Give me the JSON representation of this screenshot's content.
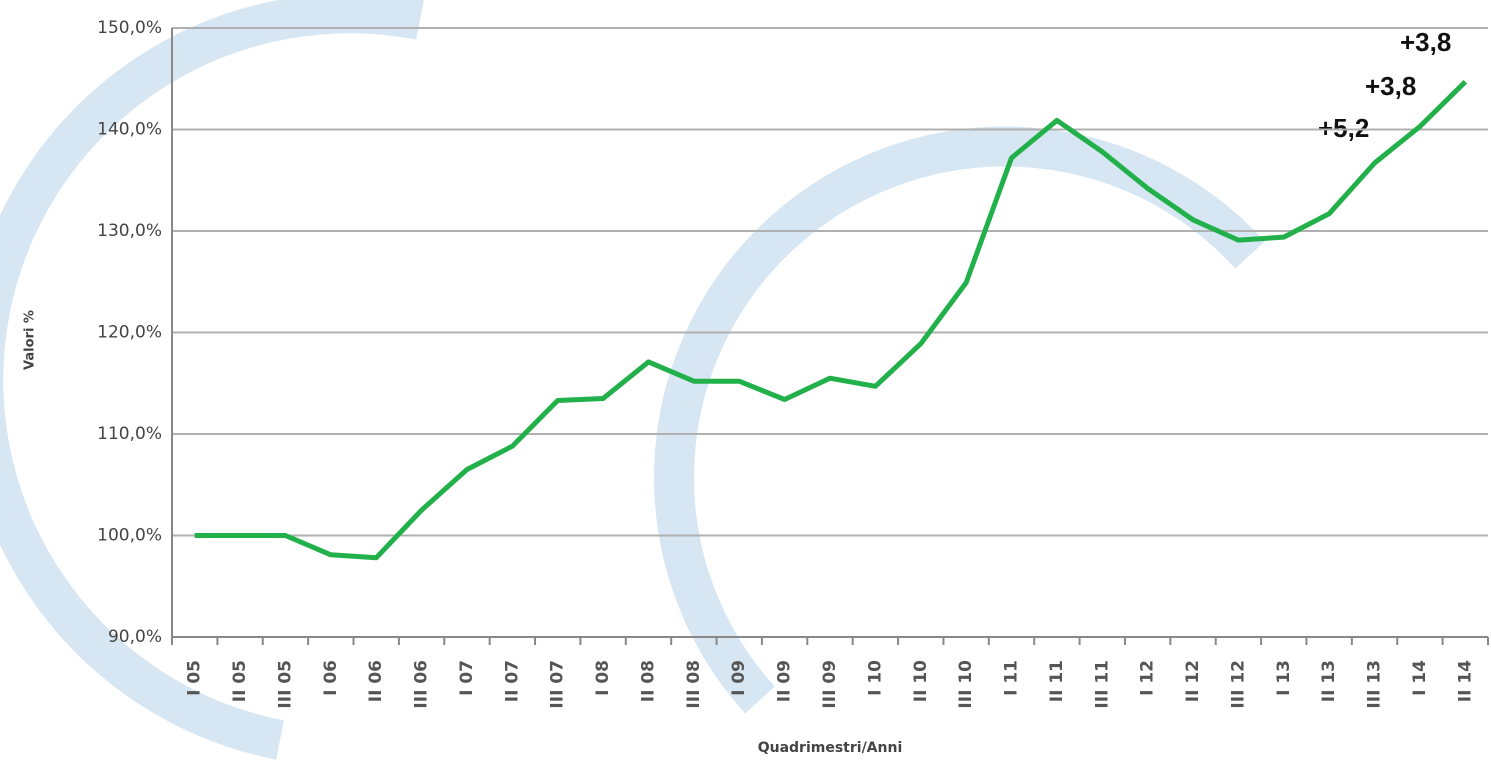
{
  "chart_data": {
    "type": "line",
    "y_label": "Valori %",
    "x_label": "Quadrimestri/Anni",
    "categories": [
      "I 05",
      "II 05",
      "III 05",
      "I 06",
      "II 06",
      "III 06",
      "I 07",
      "II 07",
      "III 07",
      "I 08",
      "II 08",
      "III 08",
      "I 09",
      "II 09",
      "III 09",
      "I 10",
      "II 10",
      "III 10",
      "I 11",
      "II 11",
      "III 11",
      "I 12",
      "II 12",
      "III 12",
      "I 13",
      "II 13",
      "III 13",
      "I 14",
      "II 14"
    ],
    "series": [
      {
        "color": "#22b04a",
        "values": [
          100,
          100,
          100,
          98.1,
          97.8,
          102.5,
          106.5,
          108.8,
          113.3,
          113.5,
          117.1,
          115.2,
          115.2,
          113.4,
          115.5,
          114.7,
          118.9,
          124.9,
          137.2,
          140.9,
          137.8,
          134.2,
          131.1,
          129.1,
          129.4,
          131.7,
          136.7,
          140.3,
          144.7
        ]
      }
    ],
    "ylim": [
      90,
      150
    ],
    "yticks": [
      {
        "value": 90,
        "label": "90,0%"
      },
      {
        "value": 100,
        "label": "100,0%"
      },
      {
        "value": 110,
        "label": "110,0%"
      },
      {
        "value": 120,
        "label": "120,0%"
      },
      {
        "value": 130,
        "label": "130,0%"
      },
      {
        "value": 140,
        "label": "140,0%"
      },
      {
        "value": 150,
        "label": "150,0%"
      }
    ],
    "grid": true,
    "annotations": [
      "+5,2",
      "+3,8",
      "+3,8"
    ]
  }
}
